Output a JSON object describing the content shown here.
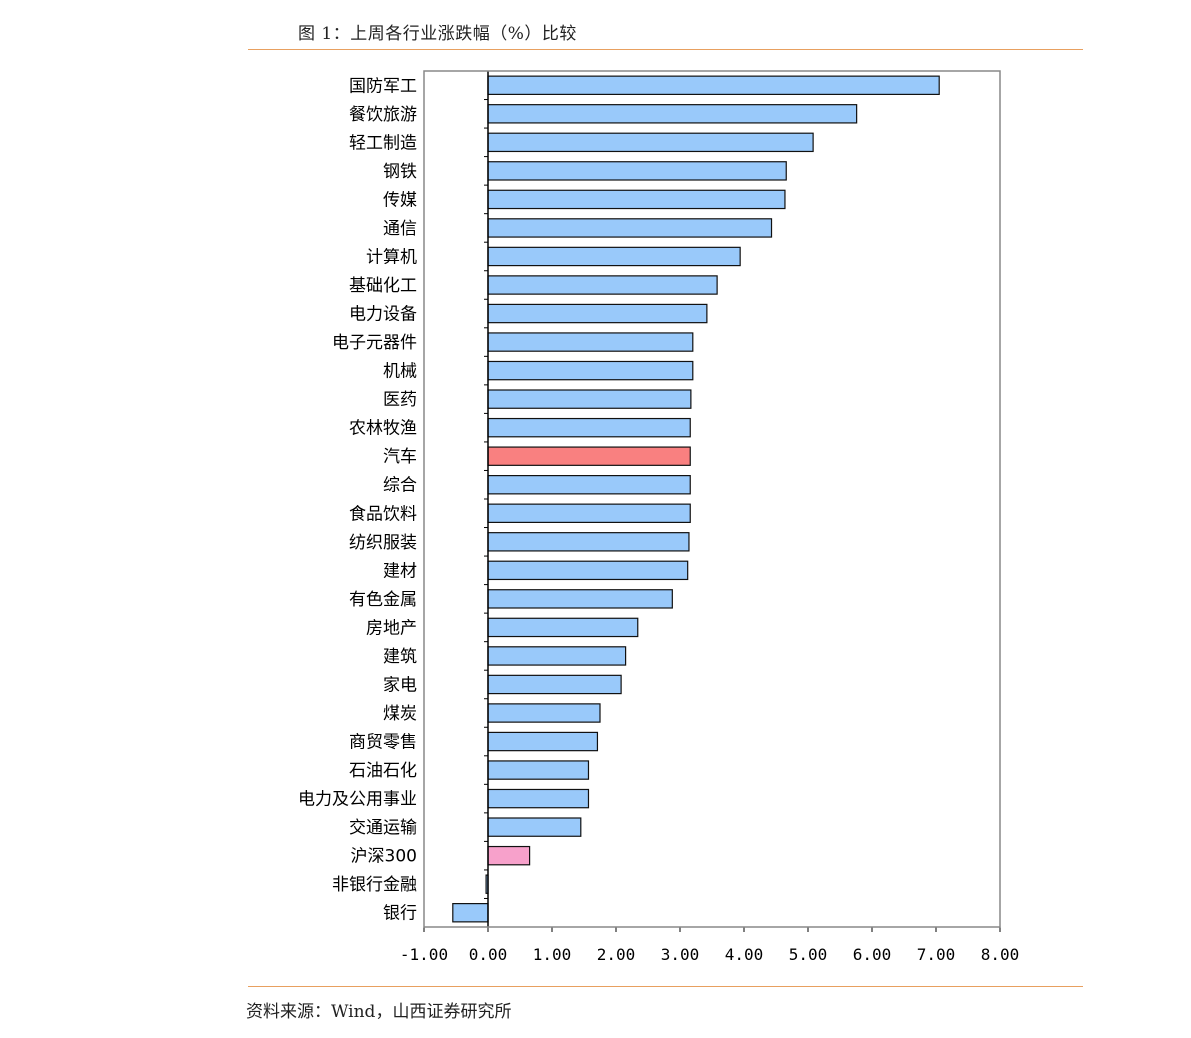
{
  "page": {
    "figure_title": "图 1：上周各行业涨跌幅（%）比较",
    "source": "资料来源：Wind，山西证券研究所"
  },
  "colors": {
    "default_bar": "#99c9fa",
    "highlight_bar": "#f98080",
    "index_bar": "#f7a1cb",
    "negative_tick": "#e8161b",
    "rule": "#e8a060"
  },
  "chart_data": {
    "type": "bar",
    "orientation": "horizontal",
    "title": "",
    "xlabel": "",
    "ylabel": "",
    "xlim": [
      -1,
      8
    ],
    "x_ticks": [
      -1,
      0,
      1,
      2,
      3,
      4,
      5,
      6,
      7,
      8
    ],
    "x_tick_labels": [
      "-1.00",
      "0.00",
      "1.00",
      "2.00",
      "3.00",
      "4.00",
      "5.00",
      "6.00",
      "7.00",
      "8.00"
    ],
    "grid": false,
    "categories": [
      "国防军工",
      "餐饮旅游",
      "轻工制造",
      "钢铁",
      "传媒",
      "通信",
      "计算机",
      "基础化工",
      "电力设备",
      "电子元器件",
      "机械",
      "医药",
      "农林牧渔",
      "汽车",
      "综合",
      "食品饮料",
      "纺织服装",
      "建材",
      "有色金属",
      "房地产",
      "建筑",
      "家电",
      "煤炭",
      "商贸零售",
      "石油石化",
      "电力及公用事业",
      "交通运输",
      "沪深300",
      "非银行金融",
      "银行"
    ],
    "values": [
      7.05,
      5.76,
      5.08,
      4.66,
      4.64,
      4.43,
      3.94,
      3.58,
      3.42,
      3.2,
      3.2,
      3.17,
      3.16,
      3.16,
      3.16,
      3.16,
      3.14,
      3.12,
      2.88,
      2.34,
      2.15,
      2.08,
      1.75,
      1.71,
      1.57,
      1.57,
      1.45,
      0.65,
      -0.03,
      -0.55
    ],
    "bar_colors": [
      "default",
      "default",
      "default",
      "default",
      "default",
      "default",
      "default",
      "default",
      "default",
      "default",
      "default",
      "default",
      "default",
      "highlight",
      "default",
      "default",
      "default",
      "default",
      "default",
      "default",
      "default",
      "default",
      "default",
      "default",
      "default",
      "default",
      "default",
      "index",
      "default",
      "default"
    ]
  }
}
